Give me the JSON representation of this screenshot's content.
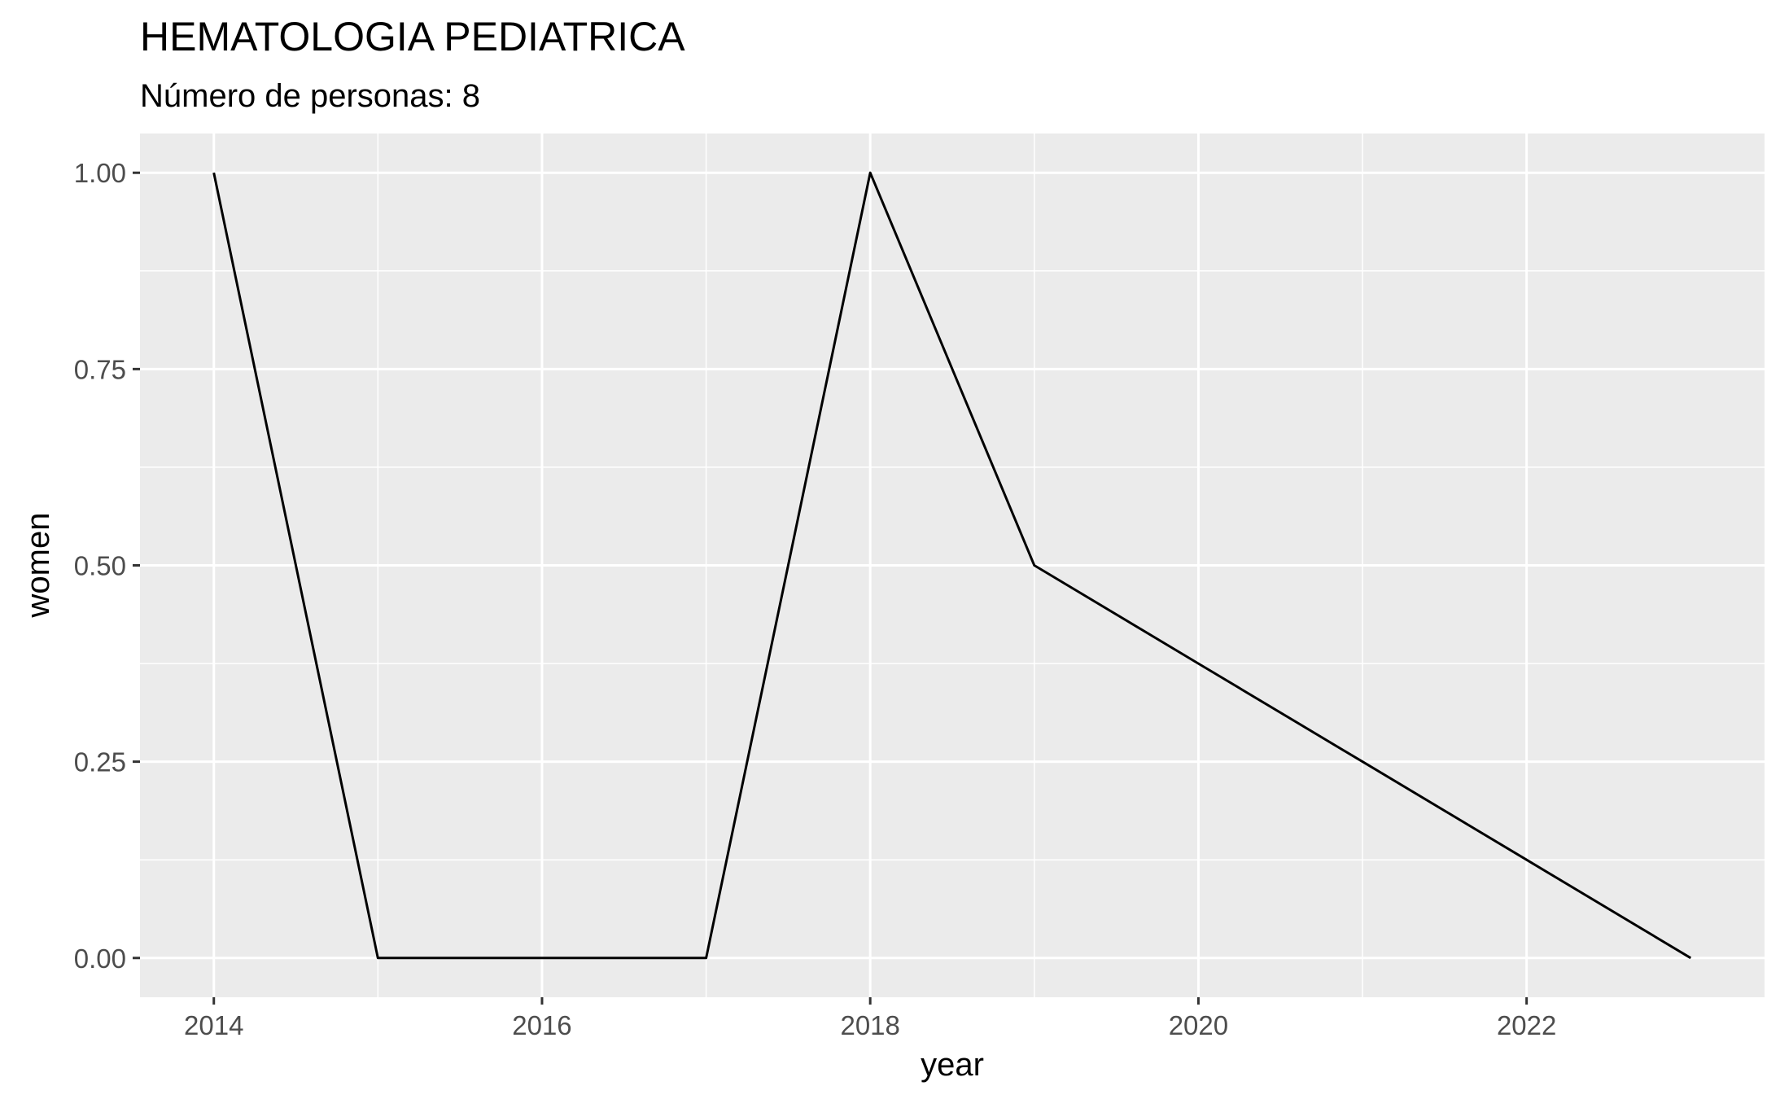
{
  "chart_data": {
    "type": "line",
    "title": "HEMATOLOGIA PEDIATRICA",
    "subtitle": "Número de personas: 8",
    "xlabel": "year",
    "ylabel": "women",
    "x": [
      2014,
      2015,
      2016,
      2017,
      2018,
      2019,
      2020,
      2021,
      2022,
      2023
    ],
    "series": [
      {
        "values": [
          1.0,
          0.0,
          0.0,
          0.0,
          1.0,
          0.5,
          0.375,
          0.25,
          0.125,
          0.0
        ]
      }
    ],
    "xlim": [
      2013.55,
      2023.45
    ],
    "ylim": [
      -0.05,
      1.05
    ],
    "x_ticks": [
      "2014",
      "2016",
      "2018",
      "2020",
      "2022"
    ],
    "y_ticks": [
      "0.00",
      "0.25",
      "0.50",
      "0.75",
      "1.00"
    ],
    "grid": true,
    "panel_color": "#ebebeb",
    "line_color": "#000000"
  }
}
